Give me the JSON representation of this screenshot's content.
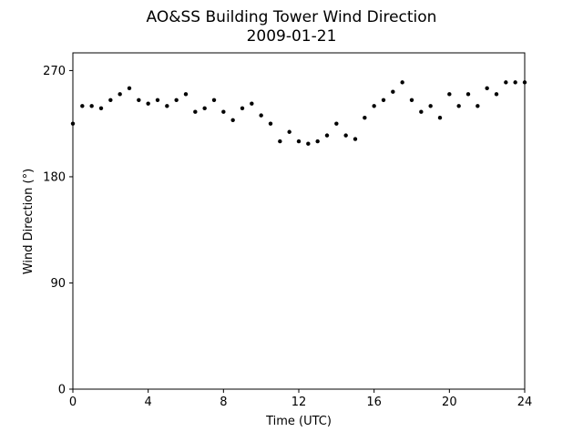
{
  "chart_data": {
    "type": "scatter",
    "title": "AO&SS Building Tower Wind Direction",
    "subtitle": "2009-01-21",
    "xlabel": "Time (UTC)",
    "ylabel": "Wind Direction (°)",
    "xlim": [
      0,
      24
    ],
    "ylim": [
      0,
      285
    ],
    "xticks": [
      0,
      4,
      8,
      12,
      16,
      20,
      24
    ],
    "yticks": [
      0,
      90,
      180,
      270
    ],
    "grid": false,
    "marker_color": "#000000",
    "series": [
      {
        "x": [
          0,
          0.5,
          1,
          1.5,
          2,
          2.5,
          3,
          3.5,
          4,
          4.5,
          5,
          5.5,
          6,
          6.5,
          7,
          7.5,
          8,
          8.5,
          9,
          9.5,
          10,
          10.5,
          11,
          11.5,
          12,
          12.5,
          13,
          13.5,
          14,
          14.5,
          15,
          15.5,
          16,
          16.5,
          17,
          17.5,
          18,
          18.5,
          19,
          19.5,
          20,
          20.5,
          21,
          21.5,
          22,
          22.5,
          23,
          23.5,
          24
        ],
        "y": [
          225,
          240,
          240,
          238,
          245,
          250,
          255,
          245,
          242,
          245,
          240,
          245,
          250,
          235,
          238,
          245,
          235,
          228,
          238,
          242,
          232,
          225,
          210,
          218,
          210,
          208,
          210,
          215,
          225,
          215,
          212,
          230,
          240,
          245,
          252,
          260,
          245,
          235,
          240,
          230,
          250,
          240,
          250,
          240,
          255,
          250,
          260,
          260,
          260
        ]
      }
    ]
  }
}
